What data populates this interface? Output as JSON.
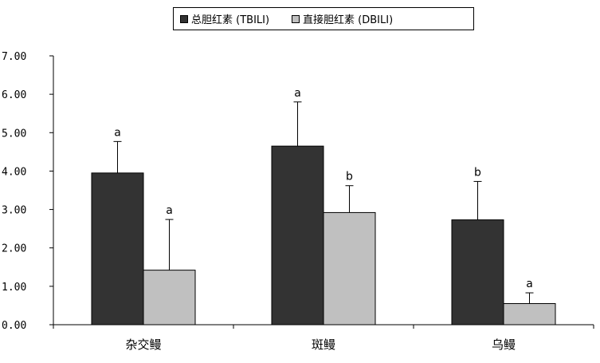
{
  "chart_data": {
    "type": "bar",
    "categories": [
      "杂交鳗",
      "斑鳗",
      "乌鳗"
    ],
    "series": [
      {
        "name": "总胆红素 (TBILI)",
        "color": "#333333",
        "values": [
          3.95,
          4.65,
          2.73
        ],
        "errors": [
          0.82,
          1.15,
          1.0
        ],
        "labels": [
          "a",
          "a",
          "b"
        ]
      },
      {
        "name": "直接胆红素 (DBILI)",
        "color": "#c0c0c0",
        "values": [
          1.42,
          2.92,
          0.55
        ],
        "errors": [
          1.32,
          0.7,
          0.28
        ],
        "labels": [
          "a",
          "b",
          "a"
        ]
      }
    ],
    "ylim": [
      0,
      7
    ],
    "yticks": [
      "0.00",
      "1.00",
      "2.00",
      "3.00",
      "4.00",
      "5.00",
      "6.00",
      "7.00"
    ],
    "legend_position": "top-center",
    "grid": false,
    "title": "",
    "xlabel": "",
    "ylabel": ""
  }
}
